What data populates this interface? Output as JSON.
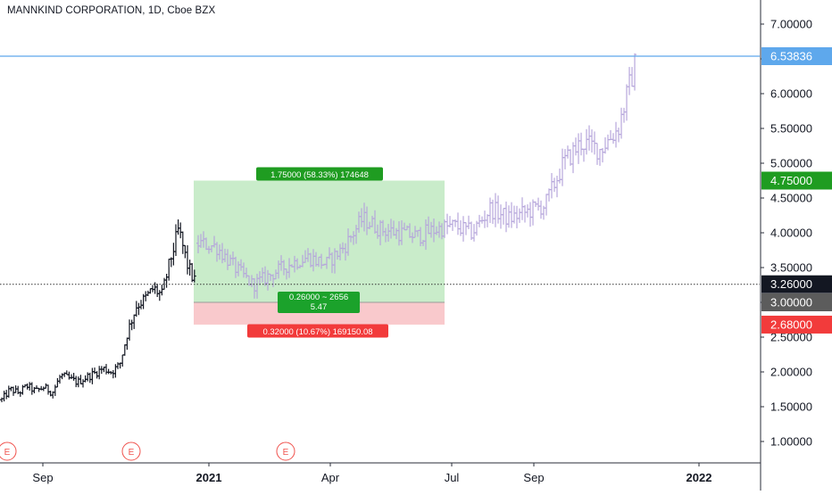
{
  "header": {
    "title": "MANNKIND CORPORATION, 1D, Cboe BZX"
  },
  "colors": {
    "price_line": "#5ea8ec",
    "target_zone": "#c9ecca",
    "stop_zone": "#f9c9cc",
    "target_label": "#1f9c21",
    "stop_label": "#f23b3b",
    "entry_label": "#1ba22b",
    "current_price_label": "#131722",
    "entry_axis_label": "#5c5c5c",
    "historical_bars": "#131722",
    "projected_bars": "#b6a7db",
    "earnings_marker": "#f0544f"
  },
  "chart_data": {
    "type": "ohlc",
    "symbol": "MANNKIND CORPORATION",
    "interval": "1D",
    "exchange": "Cboe BZX",
    "y_axis": {
      "ticks": [
        "7.00000",
        "6.50000",
        "6.00000",
        "5.50000",
        "5.00000",
        "4.50000",
        "4.00000",
        "3.50000",
        "3.00000",
        "2.50000",
        "2.00000",
        "1.50000",
        "1.00000"
      ],
      "tick_values": [
        7.0,
        6.5,
        6.0,
        5.5,
        5.0,
        4.5,
        4.0,
        3.5,
        3.0,
        2.5,
        2.0,
        1.5,
        1.0
      ],
      "range": [
        0.62,
        7.5
      ]
    },
    "x_axis": {
      "labels": [
        {
          "text": "Sep",
          "bold": false
        },
        {
          "text": "2021",
          "bold": true
        },
        {
          "text": "Apr",
          "bold": false
        },
        {
          "text": "Jul",
          "bold": false
        },
        {
          "text": "Sep",
          "bold": false
        },
        {
          "text": "2022",
          "bold": true
        }
      ]
    },
    "price_labels": {
      "top_line": "6.53836",
      "target": "4.75000",
      "current": "3.26000",
      "entry": "3.00000",
      "stop": "2.68000"
    },
    "levels": {
      "top_line": 6.53836,
      "target": 4.75,
      "current": 3.26,
      "entry": 3.0,
      "stop": 2.68
    },
    "position_tool": {
      "target_label": "1.75000 (58.33%) 174648",
      "entry_label_line1": "0.26000 ~ 2656",
      "entry_label_line2": "5.47",
      "stop_label": "0.32000 (10.67%) 169150.08"
    },
    "earnings_markers": [
      "E",
      "E",
      "E"
    ],
    "historical_series": {
      "name": "",
      "x": [
        "Jul-2020",
        "Jul-2020",
        "Jul-2020",
        "Aug-2020",
        "Aug-2020",
        "Aug-2020",
        "Aug-2020",
        "Sep-2020",
        "Sep-2020",
        "Sep-2020",
        "Sep-2020",
        "Oct-2020",
        "Oct-2020",
        "Oct-2020",
        "Oct-2020",
        "Nov-2020",
        "Nov-2020",
        "Nov-2020",
        "Nov-2020",
        "Dec-2020",
        "Dec-2020",
        "Dec-2020",
        "Dec-2020",
        "Dec-2020"
      ],
      "values": [
        1.6,
        1.75,
        1.7,
        1.8,
        1.72,
        1.78,
        1.7,
        1.95,
        1.9,
        1.85,
        1.92,
        1.98,
        2.05,
        2.0,
        2.1,
        2.6,
        2.95,
        3.05,
        3.2,
        3.1,
        3.6,
        4.05,
        3.55,
        3.26
      ]
    },
    "projected_series": {
      "name": "",
      "x": [
        "Jan-2021",
        "Jan-2021",
        "Feb-2021",
        "Feb-2021",
        "Mar-2021",
        "Mar-2021",
        "Mar-2021",
        "Apr-2021",
        "Apr-2021",
        "May-2021",
        "May-2021",
        "Jun-2021",
        "Jun-2021",
        "Jul-2021",
        "Jul-2021",
        "Aug-2021",
        "Aug-2021",
        "Sep-2021",
        "Sep-2021",
        "Oct-2021",
        "Oct-2021",
        "Nov-2021",
        "Nov-2021",
        "Nov-2021",
        "Dec-2021"
      ],
      "values": [
        3.85,
        3.8,
        3.5,
        3.25,
        3.4,
        3.55,
        3.65,
        3.55,
        3.8,
        4.2,
        4.05,
        4.0,
        3.95,
        4.05,
        4.1,
        4.0,
        4.35,
        4.2,
        4.3,
        4.4,
        5.0,
        5.3,
        5.2,
        5.5,
        6.5
      ]
    }
  }
}
